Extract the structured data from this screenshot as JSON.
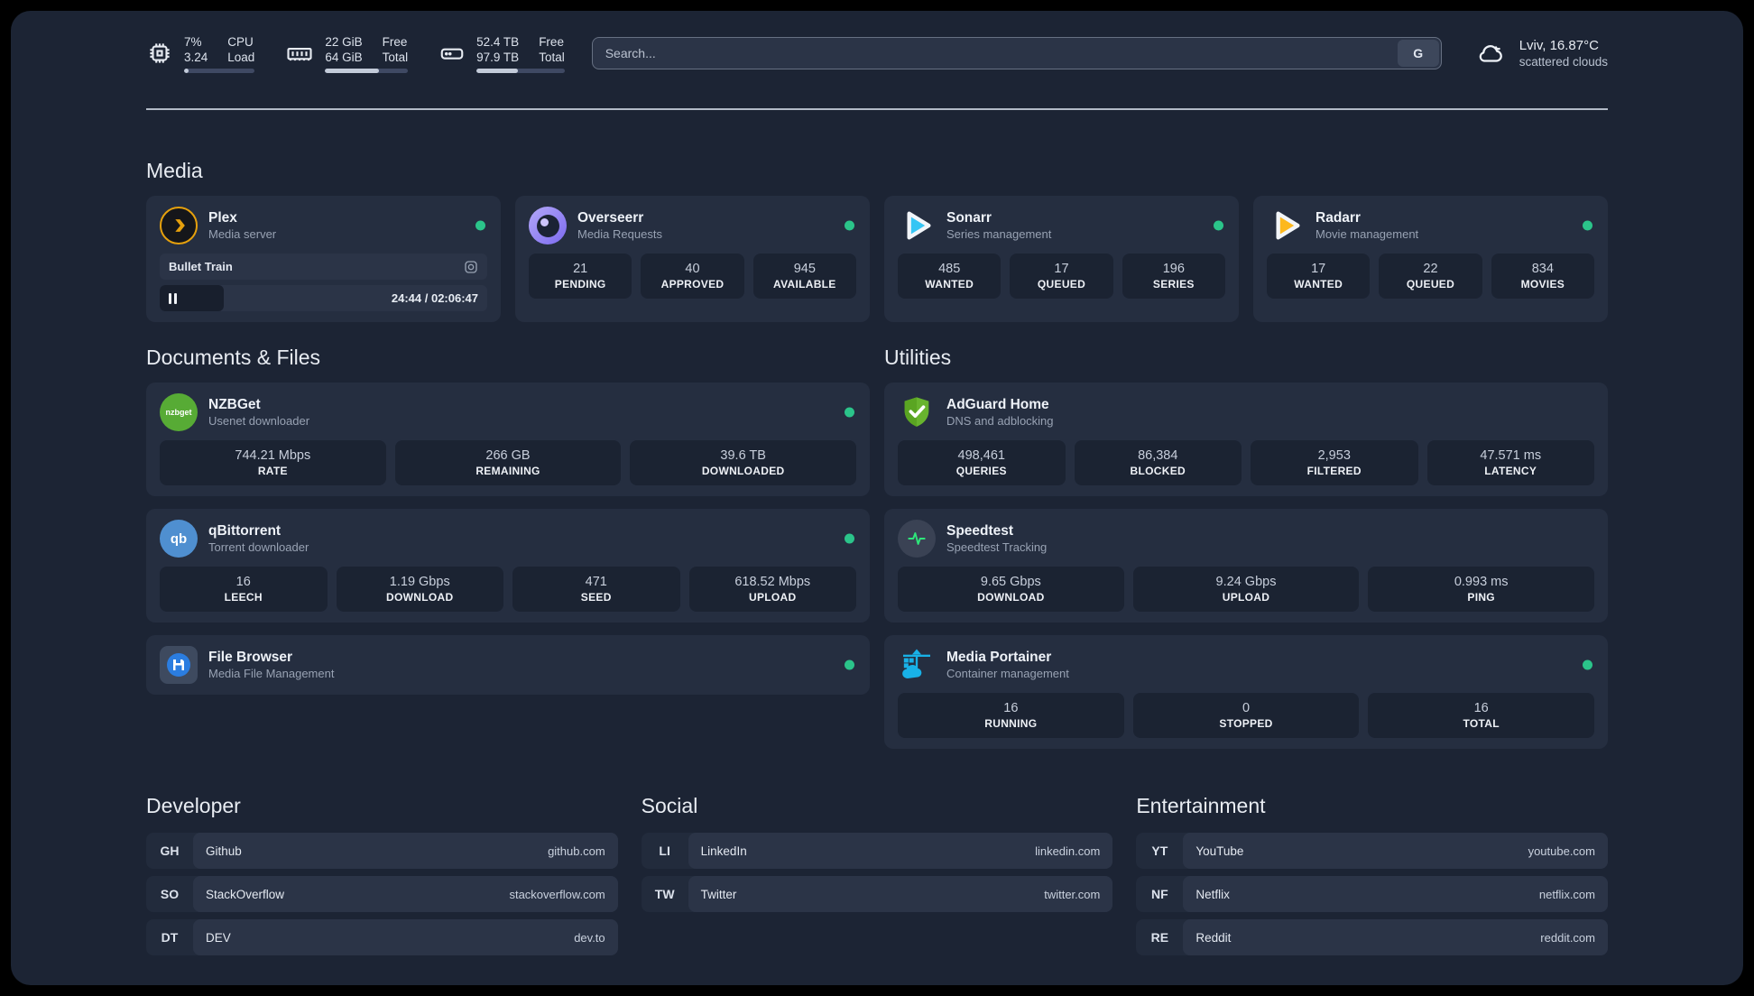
{
  "colors": {
    "status_online": "#2bc48a",
    "plex_orange": "#e5a00d",
    "sonarr_blue": "#35c5f4",
    "radarr_yellow": "#fdb81e",
    "nzbget_green": "#57ab35",
    "qbittorrent_blue": "#4f8fd0",
    "adguard_green": "#68b42e",
    "portainer_blue": "#18b1e7",
    "speedtest_pulse": "#2ee67a"
  },
  "header": {
    "metrics": [
      {
        "icon": "cpu-icon",
        "col1_top": "7%",
        "col1_bottom": "3.24",
        "col2_top": "CPU",
        "col2_bottom": "Load",
        "progress": 7
      },
      {
        "icon": "ram-icon",
        "col1_top": "22 GiB",
        "col1_bottom": "64 GiB",
        "col2_top": "Free",
        "col2_bottom": "Total",
        "progress": 65
      },
      {
        "icon": "disk-icon",
        "col1_top": "52.4 TB",
        "col1_bottom": "97.9 TB",
        "col2_top": "Free",
        "col2_bottom": "Total",
        "progress": 47
      }
    ],
    "search": {
      "placeholder": "Search...",
      "engine_button": "G"
    },
    "weather": {
      "location": "Lviv, 16.87°C",
      "condition": "scattered clouds"
    }
  },
  "media": {
    "section_title": "Media",
    "apps": [
      {
        "name": "Plex",
        "subtitle": "Media server",
        "online": true,
        "now_playing": {
          "title": "Bullet Train",
          "time": "24:44 / 02:06:47",
          "progress": 19.5
        }
      },
      {
        "name": "Overseerr",
        "subtitle": "Media Requests",
        "online": true,
        "stats": [
          {
            "value": "21",
            "label": "PENDING"
          },
          {
            "value": "40",
            "label": "APPROVED"
          },
          {
            "value": "945",
            "label": "AVAILABLE"
          }
        ]
      },
      {
        "name": "Sonarr",
        "subtitle": "Series management",
        "online": true,
        "stats": [
          {
            "value": "485",
            "label": "WANTED"
          },
          {
            "value": "17",
            "label": "QUEUED"
          },
          {
            "value": "196",
            "label": "SERIES"
          }
        ]
      },
      {
        "name": "Radarr",
        "subtitle": "Movie management",
        "online": true,
        "stats": [
          {
            "value": "17",
            "label": "WANTED"
          },
          {
            "value": "22",
            "label": "QUEUED"
          },
          {
            "value": "834",
            "label": "MOVIES"
          }
        ]
      }
    ]
  },
  "documents": {
    "section_title": "Documents & Files",
    "apps": [
      {
        "name": "NZBGet",
        "subtitle": "Usenet downloader",
        "online": true,
        "badge_text": "nzbget",
        "stats": [
          {
            "value": "744.21 Mbps",
            "label": "RATE"
          },
          {
            "value": "266 GB",
            "label": "REMAINING"
          },
          {
            "value": "39.6 TB",
            "label": "DOWNLOADED"
          }
        ]
      },
      {
        "name": "qBittorrent",
        "subtitle": "Torrent downloader",
        "online": true,
        "badge_text": "qb",
        "stats": [
          {
            "value": "16",
            "label": "LEECH"
          },
          {
            "value": "1.19 Gbps",
            "label": "DOWNLOAD"
          },
          {
            "value": "471",
            "label": "SEED"
          },
          {
            "value": "618.52 Mbps",
            "label": "UPLOAD"
          }
        ]
      },
      {
        "name": "File Browser",
        "subtitle": "Media File Management",
        "online": true,
        "stats": []
      }
    ]
  },
  "utilities": {
    "section_title": "Utilities",
    "apps": [
      {
        "name": "AdGuard Home",
        "subtitle": "DNS and adblocking",
        "online": false,
        "stats": [
          {
            "value": "498,461",
            "label": "QUERIES"
          },
          {
            "value": "86,384",
            "label": "BLOCKED"
          },
          {
            "value": "2,953",
            "label": "FILTERED"
          },
          {
            "value": "47.571 ms",
            "label": "LATENCY"
          }
        ]
      },
      {
        "name": "Speedtest",
        "subtitle": "Speedtest Tracking",
        "online": false,
        "stats": [
          {
            "value": "9.65 Gbps",
            "label": "DOWNLOAD"
          },
          {
            "value": "9.24 Gbps",
            "label": "UPLOAD"
          },
          {
            "value": "0.993 ms",
            "label": "PING"
          }
        ]
      },
      {
        "name": "Media Portainer",
        "subtitle": "Container management",
        "online": true,
        "stats": [
          {
            "value": "16",
            "label": "RUNNING"
          },
          {
            "value": "0",
            "label": "STOPPED"
          },
          {
            "value": "16",
            "label": "TOTAL"
          }
        ]
      }
    ]
  },
  "link_sections": [
    {
      "title": "Developer",
      "links": [
        {
          "abbrev": "GH",
          "name": "Github",
          "url": "github.com"
        },
        {
          "abbrev": "SO",
          "name": "StackOverflow",
          "url": "stackoverflow.com"
        },
        {
          "abbrev": "DT",
          "name": "DEV",
          "url": "dev.to"
        }
      ]
    },
    {
      "title": "Social",
      "links": [
        {
          "abbrev": "LI",
          "name": "LinkedIn",
          "url": "linkedin.com"
        },
        {
          "abbrev": "TW",
          "name": "Twitter",
          "url": "twitter.com"
        }
      ]
    },
    {
      "title": "Entertainment",
      "links": [
        {
          "abbrev": "YT",
          "name": "YouTube",
          "url": "youtube.com"
        },
        {
          "abbrev": "NF",
          "name": "Netflix",
          "url": "netflix.com"
        },
        {
          "abbrev": "RE",
          "name": "Reddit",
          "url": "reddit.com"
        }
      ]
    }
  ]
}
